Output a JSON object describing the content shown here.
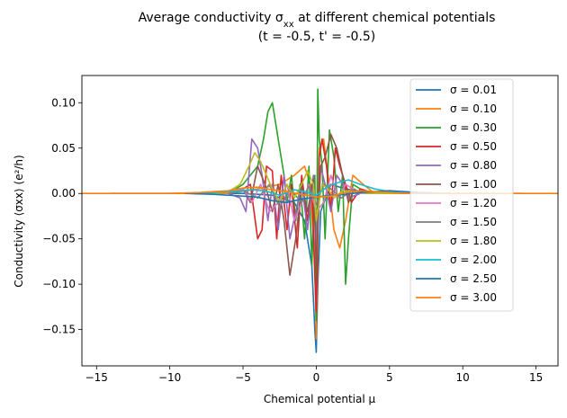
{
  "chart_data": {
    "type": "line",
    "title_line1": "Average conductivity σ",
    "title_line1_sub": "xx",
    "title_line1_rest": " at different chemical potentials",
    "title_line2": "(t = -0.5, t' = -0.5)",
    "xlabel": "Chemical potential μ",
    "ylabel": "Conductivity ⟨σxx⟩ (e²/h)",
    "xlim": [
      -16,
      16.5
    ],
    "ylim": [
      -0.19,
      0.13
    ],
    "xticks": [
      -15,
      -10,
      -5,
      0,
      5,
      10,
      15
    ],
    "xtick_labels": [
      "−15",
      "−10",
      "−5",
      "0",
      "5",
      "10",
      "15"
    ],
    "yticks": [
      -0.15,
      -0.1,
      -0.05,
      0.0,
      0.05,
      0.1
    ],
    "ytick_labels": [
      "−0.15",
      "−0.10",
      "−0.05",
      "0.00",
      "0.05",
      "0.10"
    ],
    "grid": false,
    "legend_position": "upper-right",
    "series": [
      {
        "name": "σ = 0.01",
        "color": "#1f77b4",
        "x": [
          -14,
          -5,
          -3,
          -1.5,
          -0.8,
          -0.3,
          -0.1,
          0,
          0.1,
          0.3,
          1,
          2,
          4,
          6,
          14
        ],
        "y": [
          0,
          0,
          -0.002,
          -0.01,
          -0.03,
          -0.08,
          -0.15,
          -0.175,
          -0.1,
          -0.02,
          0.01,
          0.005,
          0,
          0,
          0
        ]
      },
      {
        "name": "σ = 0.10",
        "color": "#ff7f0e",
        "x": [
          -16,
          -6,
          -4,
          -2.5,
          -1.5,
          -0.8,
          -0.4,
          -0.1,
          0,
          0.2,
          0.5,
          0.8,
          1.2,
          1.6,
          2,
          2.5,
          3.2,
          4,
          6,
          16.5
        ],
        "y": [
          0,
          0,
          0.005,
          0.01,
          0.02,
          0.03,
          0.01,
          -0.08,
          -0.16,
          0.05,
          0.06,
          0.02,
          -0.04,
          -0.06,
          -0.03,
          0.02,
          0.01,
          0,
          0,
          0
        ]
      },
      {
        "name": "σ = 0.30",
        "color": "#2ca02c",
        "x": [
          -6,
          -5,
          -4.5,
          -4,
          -3.6,
          -3.3,
          -3,
          -2.8,
          -2.5,
          -2.2,
          -2,
          -1.7,
          -1.4,
          -1.1,
          -0.8,
          -0.5,
          -0.3,
          -0.1,
          0,
          0.1,
          0.2,
          0.4,
          0.6,
          0.9,
          1.2,
          1.5,
          1.8,
          2,
          2.2,
          2.5,
          3,
          4,
          6
        ],
        "y": [
          0,
          0.01,
          0.02,
          0.03,
          0.06,
          0.09,
          0.1,
          0.08,
          0.05,
          0.02,
          -0.01,
          0.02,
          -0.03,
          0.01,
          -0.05,
          0.03,
          -0.08,
          0.02,
          -0.14,
          0.115,
          0.06,
          0.03,
          -0.05,
          0.07,
          0.04,
          -0.02,
          0.02,
          -0.1,
          -0.05,
          0.01,
          0.005,
          0,
          0
        ]
      },
      {
        "name": "σ = 0.50",
        "color": "#d62728",
        "x": [
          -6,
          -5,
          -4.5,
          -4,
          -3.7,
          -3.4,
          -3,
          -2.7,
          -2.4,
          -2,
          -1.7,
          -1.3,
          -1,
          -0.6,
          -0.3,
          -0.1,
          0,
          0.2,
          0.4,
          0.7,
          1,
          1.3,
          1.6,
          2,
          2.4,
          3,
          4,
          6
        ],
        "y": [
          0,
          0.005,
          0.01,
          -0.05,
          -0.04,
          0.03,
          0.025,
          -0.05,
          0.02,
          -0.04,
          0.01,
          -0.06,
          0.02,
          -0.03,
          0.01,
          -0.09,
          -0.13,
          0.04,
          0.06,
          0.03,
          -0.02,
          0.05,
          0.03,
          0.01,
          -0.01,
          0.005,
          0,
          0
        ]
      },
      {
        "name": "σ = 0.80",
        "color": "#9467bd",
        "x": [
          -6,
          -5.2,
          -4.8,
          -4.4,
          -4,
          -3.7,
          -3.3,
          -3,
          -2.6,
          -2.2,
          -1.8,
          -1.4,
          -1,
          -0.6,
          -0.2,
          0,
          0.3,
          0.6,
          1,
          1.4,
          1.8,
          2.2,
          3,
          4,
          6
        ],
        "y": [
          0,
          -0.005,
          -0.02,
          0.06,
          0.05,
          0.02,
          -0.03,
          0.01,
          -0.04,
          0.02,
          -0.05,
          -0.02,
          0.01,
          -0.04,
          0.02,
          -0.06,
          0.03,
          0.01,
          -0.02,
          0.02,
          0.01,
          -0.005,
          0,
          0,
          0
        ]
      },
      {
        "name": "σ = 1.00",
        "color": "#8c564b",
        "x": [
          -6,
          -5,
          -4.5,
          -4,
          -3.5,
          -3,
          -2.6,
          -2.2,
          -1.8,
          -1.4,
          -1,
          -0.6,
          -0.2,
          0,
          0.3,
          0.6,
          1,
          1.4,
          1.8,
          2.2,
          2.6,
          3,
          4,
          6
        ],
        "y": [
          0,
          0.005,
          -0.01,
          0.03,
          0.01,
          -0.02,
          0.01,
          -0.03,
          -0.09,
          -0.05,
          0.01,
          -0.02,
          0.015,
          -0.08,
          0.03,
          0.04,
          0.065,
          0.05,
          0.02,
          -0.01,
          0.005,
          0,
          0,
          0
        ]
      },
      {
        "name": "σ = 1.20",
        "color": "#e377c2",
        "x": [
          -6,
          -5,
          -4.4,
          -3.8,
          -3.2,
          -2.6,
          -2,
          -1.5,
          -1,
          -0.5,
          0,
          0.5,
          1,
          1.5,
          2,
          2.5,
          3,
          4,
          6
        ],
        "y": [
          0,
          0.005,
          -0.01,
          0.01,
          -0.02,
          -0.01,
          0.01,
          -0.03,
          -0.01,
          0.01,
          -0.02,
          -0.01,
          0.02,
          -0.005,
          0.01,
          0.005,
          0,
          0,
          0
        ]
      },
      {
        "name": "σ = 1.50",
        "color": "#7f7f7f",
        "x": [
          -6,
          -5,
          -4,
          -3.2,
          -2.5,
          -1.8,
          -1,
          -0.5,
          0,
          0.5,
          1,
          1.7,
          2.5,
          3.5,
          5,
          6
        ],
        "y": [
          0,
          0.003,
          -0.005,
          0.01,
          -0.015,
          0.005,
          -0.01,
          0.008,
          -0.012,
          0.01,
          0.005,
          -0.005,
          0.004,
          0,
          0,
          0
        ]
      },
      {
        "name": "σ = 1.80",
        "color": "#bcbd22",
        "x": [
          -7,
          -6,
          -5.2,
          -4.6,
          -4.2,
          -3.8,
          -3.4,
          -3,
          -2.5,
          -2,
          -1.5,
          -1,
          -0.6,
          -0.2,
          0,
          0.4,
          0.8,
          1.2,
          1.8,
          2.5,
          3.5,
          5,
          7
        ],
        "y": [
          0,
          0.002,
          0.01,
          0.03,
          0.045,
          0.035,
          0.02,
          0.005,
          -0.01,
          0.01,
          -0.005,
          0.01,
          0.025,
          0.01,
          -0.03,
          0.01,
          0.005,
          -0.005,
          0.003,
          0.002,
          0,
          0,
          0
        ]
      },
      {
        "name": "σ = 2.00",
        "color": "#17becf",
        "x": [
          -8,
          -6,
          -4.5,
          -3.5,
          -2.5,
          -1.5,
          -0.8,
          0,
          0.8,
          1.5,
          2.2,
          3,
          4,
          5,
          6,
          8
        ],
        "y": [
          0,
          0.002,
          0.004,
          0.003,
          -0.002,
          0.004,
          0.002,
          -0.002,
          0.008,
          0.012,
          0.015,
          0.01,
          0.005,
          0.002,
          0,
          0
        ]
      },
      {
        "name": "σ = 2.50",
        "color": "#1f77b4",
        "x": [
          -9,
          -7,
          -5,
          -4,
          -3,
          -2,
          -1,
          0,
          1,
          2,
          3,
          4,
          5,
          6,
          7,
          9
        ],
        "y": [
          0,
          -0.001,
          -0.003,
          -0.004,
          -0.008,
          -0.01,
          -0.006,
          -0.004,
          -0.002,
          -0.001,
          0.001,
          0.002,
          0.003,
          0.002,
          0.001,
          0
        ]
      },
      {
        "name": "σ = 3.00",
        "color": "#ff7f0e",
        "x": [
          -10,
          -8,
          -6,
          -5,
          -4,
          -3,
          -2,
          -1,
          0,
          1,
          2,
          3,
          4,
          5,
          6,
          8,
          10
        ],
        "y": [
          0,
          0.001,
          0.003,
          0.006,
          0.007,
          0.004,
          0.002,
          -0.001,
          -0.004,
          -0.003,
          0.001,
          0.003,
          0.002,
          0.001,
          0,
          0,
          0
        ]
      }
    ]
  }
}
